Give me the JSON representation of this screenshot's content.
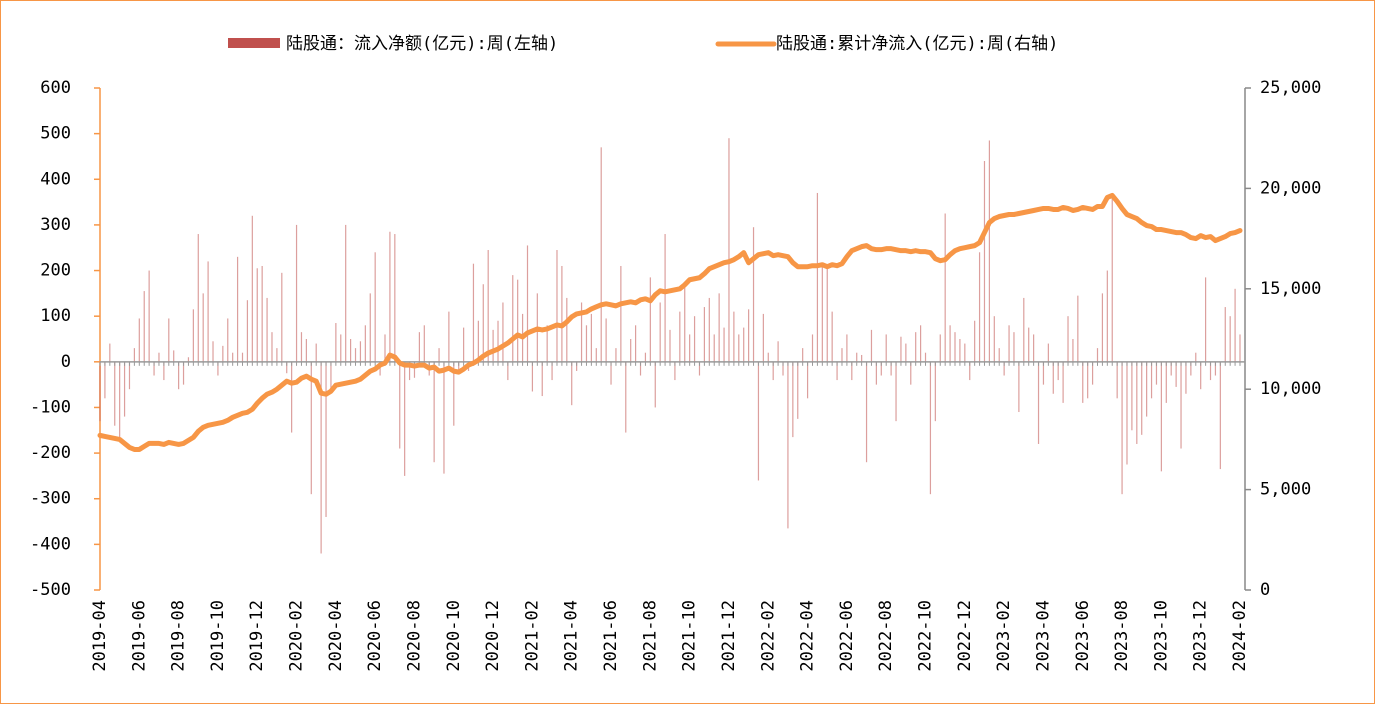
{
  "chart_data": {
    "type": "bar-line",
    "categories": [
      "2019-04",
      null,
      null,
      null,
      null,
      null,
      null,
      null,
      "2019-06",
      null,
      null,
      null,
      null,
      null,
      null,
      null,
      "2019-08",
      null,
      null,
      null,
      null,
      null,
      null,
      null,
      "2019-10",
      null,
      null,
      null,
      null,
      null,
      null,
      null,
      "2019-12",
      null,
      null,
      null,
      null,
      null,
      null,
      null,
      "2020-02",
      null,
      null,
      null,
      null,
      null,
      null,
      null,
      "2020-04",
      null,
      null,
      null,
      null,
      null,
      null,
      null,
      "2020-06",
      null,
      null,
      null,
      null,
      null,
      null,
      null,
      "2020-08",
      null,
      null,
      null,
      null,
      null,
      null,
      null,
      "2020-10",
      null,
      null,
      null,
      null,
      null,
      null,
      null,
      "2020-12",
      null,
      null,
      null,
      null,
      null,
      null,
      null,
      "2021-02",
      null,
      null,
      null,
      null,
      null,
      null,
      null,
      "2021-04",
      null,
      null,
      null,
      null,
      null,
      null,
      null,
      "2021-06",
      null,
      null,
      null,
      null,
      null,
      null,
      null,
      "2021-08",
      null,
      null,
      null,
      null,
      null,
      null,
      null,
      "2021-10",
      null,
      null,
      null,
      null,
      null,
      null,
      null,
      "2021-12",
      null,
      null,
      null,
      null,
      null,
      null,
      null,
      "2022-02",
      null,
      null,
      null,
      null,
      null,
      null,
      null,
      "2022-04",
      null,
      null,
      null,
      null,
      null,
      null,
      null,
      "2022-06",
      null,
      null,
      null,
      null,
      null,
      null,
      null,
      "2022-08",
      null,
      null,
      null,
      null,
      null,
      null,
      null,
      "2022-10",
      null,
      null,
      null,
      null,
      null,
      null,
      null,
      "2022-12",
      null,
      null,
      null,
      null,
      null,
      null,
      null,
      "2023-02",
      null,
      null,
      null,
      null,
      null,
      null,
      null,
      "2023-04",
      null,
      null,
      null,
      null,
      null,
      null,
      null,
      "2023-06",
      null,
      null,
      null,
      null,
      null,
      null,
      null,
      "2023-08",
      null,
      null,
      null,
      null,
      null,
      null,
      null,
      "2023-10",
      null,
      null,
      null,
      null,
      null,
      null,
      null,
      "2023-12",
      null,
      null,
      null,
      null,
      null,
      null,
      null,
      "2024-02"
    ],
    "series": [
      {
        "name": "陆股通：流入净额(亿元):周(左轴)",
        "type": "bar",
        "color": "#c0504d",
        "values": [
          -130,
          -80,
          40,
          -140,
          -170,
          -120,
          -60,
          30,
          95,
          155,
          200,
          -30,
          20,
          -40,
          95,
          25,
          -60,
          -50,
          10,
          115,
          280,
          150,
          220,
          45,
          -30,
          35,
          95,
          20,
          230,
          20,
          135,
          320,
          205,
          210,
          140,
          65,
          30,
          195,
          -25,
          -155,
          300,
          65,
          50,
          -290,
          40,
          -420,
          -340,
          -60,
          85,
          60,
          300,
          50,
          30,
          45,
          80,
          150,
          240,
          -30,
          60,
          285,
          280,
          -190,
          -250,
          -40,
          -35,
          65,
          80,
          -30,
          -220,
          30,
          -245,
          110,
          -140,
          -20,
          75,
          -20,
          215,
          90,
          170,
          245,
          70,
          90,
          130,
          -40,
          190,
          180,
          105,
          255,
          -65,
          150,
          -75,
          80,
          -40,
          245,
          210,
          140,
          -95,
          -20,
          130,
          80,
          105,
          30,
          470,
          95,
          -50,
          30,
          210,
          -155,
          50,
          80,
          -30,
          20,
          185,
          -100,
          130,
          280,
          70,
          -40,
          110,
          170,
          60,
          100,
          -30,
          120,
          140,
          60,
          150,
          75,
          490,
          110,
          60,
          75,
          115,
          295,
          -260,
          105,
          20,
          -40,
          45,
          -30,
          -365,
          -165,
          -125,
          30,
          -80,
          60,
          370,
          210,
          205,
          110,
          -40,
          30,
          60,
          -40,
          20,
          15,
          -220,
          70,
          -50,
          -30,
          60,
          -30,
          -130,
          55,
          40,
          -50,
          65,
          80,
          20,
          -290,
          -130,
          60,
          325,
          80,
          65,
          50,
          40,
          -40,
          90,
          240,
          440,
          485,
          100,
          30,
          -30,
          80,
          65,
          -110,
          140,
          75,
          60,
          -180,
          -50,
          40,
          -70,
          -40,
          -90,
          100,
          50,
          145,
          -90,
          -80,
          -50,
          30,
          150,
          200,
          360,
          -80,
          -290,
          -225,
          -150,
          -180,
          -160,
          -120,
          -80,
          -50,
          -240,
          -90,
          -30,
          -55,
          -190,
          -70,
          -30,
          20,
          -60,
          185,
          -40,
          -30,
          -235,
          120,
          100,
          160,
          60
        ]
      },
      {
        "name": "陆股通:累计净流入(亿元):周(右轴)",
        "type": "line",
        "axis": "y2",
        "color": "#f79646",
        "values": [
          7700,
          7650,
          7600,
          7550,
          7500,
          7300,
          7100,
          7000,
          7000,
          7150,
          7300,
          7300,
          7300,
          7250,
          7350,
          7300,
          7250,
          7300,
          7450,
          7600,
          7900,
          8100,
          8200,
          8250,
          8300,
          8350,
          8450,
          8600,
          8700,
          8800,
          8850,
          9000,
          9300,
          9550,
          9750,
          9850,
          10000,
          10200,
          10400,
          10300,
          10350,
          10550,
          10650,
          10500,
          10400,
          9800,
          9750,
          9900,
          10200,
          10250,
          10300,
          10350,
          10400,
          10500,
          10700,
          10900,
          11000,
          11200,
          11300,
          11700,
          11600,
          11300,
          11200,
          11200,
          11150,
          11200,
          11200,
          11050,
          11100,
          10900,
          10950,
          11050,
          10900,
          10850,
          11000,
          11200,
          11300,
          11450,
          11650,
          11800,
          11900,
          12000,
          12150,
          12300,
          12500,
          12700,
          12600,
          12800,
          12900,
          13000,
          12950,
          13000,
          13100,
          13200,
          13150,
          13350,
          13600,
          13750,
          13800,
          13850,
          14000,
          14100,
          14200,
          14250,
          14200,
          14150,
          14250,
          14300,
          14350,
          14300,
          14450,
          14500,
          14400,
          14700,
          14900,
          14850,
          14900,
          14950,
          15000,
          15200,
          15450,
          15500,
          15550,
          15750,
          16000,
          16100,
          16200,
          16300,
          16350,
          16450,
          16600,
          16800,
          16300,
          16500,
          16700,
          16750,
          16800,
          16650,
          16700,
          16650,
          16600,
          16300,
          16100,
          16100,
          16100,
          16150,
          16150,
          16200,
          16100,
          16200,
          16150,
          16250,
          16600,
          16900,
          17000,
          17100,
          17150,
          17000,
          16950,
          16950,
          17000,
          17000,
          16950,
          16900,
          16900,
          16850,
          16900,
          16850,
          16850,
          16800,
          16500,
          16400,
          16450,
          16700,
          16900,
          17000,
          17050,
          17100,
          17150,
          17300,
          17800,
          18300,
          18500,
          18600,
          18650,
          18700,
          18700,
          18750,
          18800,
          18850,
          18900,
          18950,
          19000,
          19000,
          18950,
          18950,
          19050,
          19000,
          18900,
          18950,
          19050,
          19000,
          18950,
          19100,
          19100,
          19550,
          19650,
          19350,
          19000,
          18700,
          18600,
          18500,
          18300,
          18150,
          18100,
          17950,
          17950,
          17900,
          17850,
          17800,
          17800,
          17700,
          17550,
          17500,
          17650,
          17550,
          17600,
          17400,
          17500,
          17600,
          17750,
          17800,
          17900
        ]
      }
    ],
    "ylim": [
      -500,
      600
    ],
    "yticks": [
      600,
      500,
      400,
      300,
      200,
      100,
      0,
      -100,
      -200,
      -300,
      -400,
      -500
    ],
    "y2lim": [
      0,
      25000
    ],
    "y2ticks": [
      {
        "value": 25000,
        "label": "25,000"
      },
      {
        "value": 20000,
        "label": "20,000"
      },
      {
        "value": 15000,
        "label": "15,000"
      },
      {
        "value": 10000,
        "label": "10,000"
      },
      {
        "value": 5000,
        "label": "5,000"
      },
      0
    ],
    "legend": "top"
  }
}
